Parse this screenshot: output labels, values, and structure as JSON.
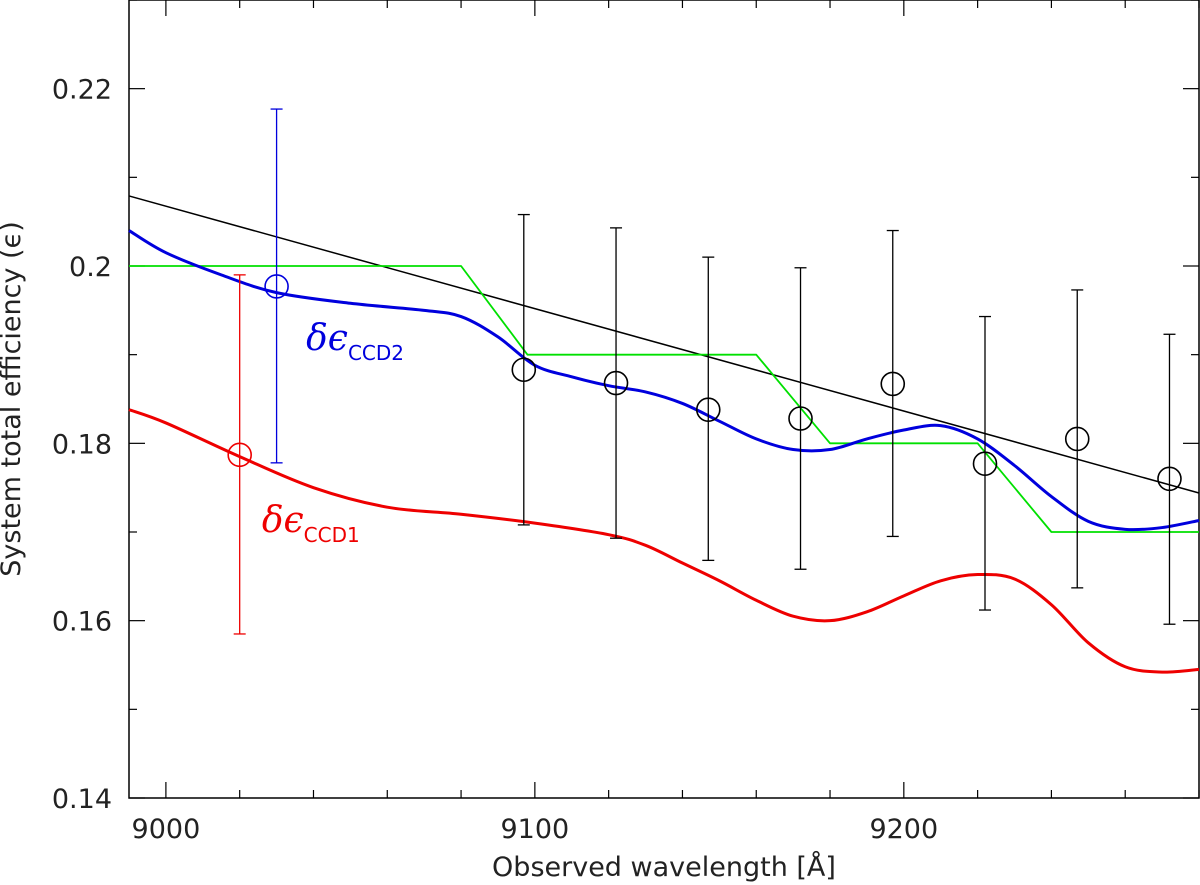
{
  "chart_data": {
    "type": "line",
    "xlabel": "Observed wavelength [Å]",
    "ylabel": "System total efficiency (ϵ)",
    "xlim": [
      8990,
      9280
    ],
    "ylim": [
      0.14,
      0.23
    ],
    "x_ticks": [
      9000,
      9100,
      9200
    ],
    "y_ticks": [
      0.14,
      0.16,
      0.18,
      0.2,
      0.22
    ],
    "x_tick_labels": [
      "9000",
      "9100",
      "9200"
    ],
    "y_tick_labels": [
      "0.14",
      "0.16",
      "0.18",
      "0.2",
      "0.22"
    ],
    "grid": false,
    "series": [
      {
        "color": "#000000",
        "style": "straight-line",
        "x": [
          8990,
          9280
        ],
        "y": [
          0.2079,
          0.1744
        ]
      },
      {
        "color": "#00e000",
        "style": "step-line",
        "x": [
          8990,
          9080,
          9098,
          9160,
          9180,
          9220,
          9240,
          9280
        ],
        "y": [
          0.2,
          0.2,
          0.19,
          0.19,
          0.18,
          0.18,
          0.17,
          0.17
        ]
      },
      {
        "color": "#0000dd",
        "style": "smooth-curve",
        "x": [
          8990,
          9000,
          9015,
          9030,
          9050,
          9070,
          9080,
          9090,
          9100,
          9110,
          9120,
          9130,
          9140,
          9150,
          9160,
          9170,
          9180,
          9190,
          9200,
          9210,
          9220,
          9230,
          9240,
          9250,
          9260,
          9270,
          9280
        ],
        "y": [
          0.204,
          0.2015,
          0.199,
          0.197,
          0.1958,
          0.195,
          0.1943,
          0.192,
          0.1888,
          0.1875,
          0.1865,
          0.1858,
          0.1845,
          0.1825,
          0.1805,
          0.1793,
          0.1793,
          0.1805,
          0.1815,
          0.182,
          0.1805,
          0.1775,
          0.174,
          0.1712,
          0.1703,
          0.1705,
          0.1713
        ]
      },
      {
        "color": "#ee0000",
        "style": "smooth-curve",
        "x": [
          8990,
          9000,
          9020,
          9040,
          9060,
          9080,
          9100,
          9120,
          9130,
          9140,
          9150,
          9160,
          9170,
          9180,
          9190,
          9200,
          9210,
          9220,
          9230,
          9240,
          9250,
          9260,
          9270,
          9280
        ],
        "y": [
          0.1838,
          0.1823,
          0.1785,
          0.175,
          0.1728,
          0.172,
          0.171,
          0.1697,
          0.1685,
          0.1665,
          0.1645,
          0.1623,
          0.1605,
          0.16,
          0.161,
          0.1628,
          0.1645,
          0.1652,
          0.1647,
          0.1618,
          0.1575,
          0.1548,
          0.1542,
          0.1545
        ]
      }
    ],
    "points": [
      {
        "x": 9020,
        "y": 0.1787,
        "yerr_low": 0.1585,
        "yerr_high": 0.199,
        "color": "#ee0000"
      },
      {
        "x": 9030,
        "y": 0.1977,
        "yerr_low": 0.1778,
        "yerr_high": 0.2177,
        "color": "#0000dd"
      },
      {
        "x": 9097,
        "y": 0.1883,
        "yerr_low": 0.1708,
        "yerr_high": 0.2058,
        "color": "#000000"
      },
      {
        "x": 9122,
        "y": 0.1868,
        "yerr_low": 0.1693,
        "yerr_high": 0.2043,
        "color": "#000000"
      },
      {
        "x": 9147,
        "y": 0.1838,
        "yerr_low": 0.1668,
        "yerr_high": 0.201,
        "color": "#000000"
      },
      {
        "x": 9172,
        "y": 0.1828,
        "yerr_low": 0.1658,
        "yerr_high": 0.1998,
        "color": "#000000"
      },
      {
        "x": 9197,
        "y": 0.1867,
        "yerr_low": 0.1695,
        "yerr_high": 0.204,
        "color": "#000000"
      },
      {
        "x": 9222,
        "y": 0.1777,
        "yerr_low": 0.1612,
        "yerr_high": 0.1943,
        "color": "#000000"
      },
      {
        "x": 9247,
        "y": 0.1805,
        "yerr_low": 0.1637,
        "yerr_high": 0.1973,
        "color": "#000000"
      },
      {
        "x": 9272,
        "y": 0.176,
        "yerr_low": 0.1596,
        "yerr_high": 0.1923,
        "color": "#000000"
      }
    ],
    "annotations": [
      {
        "text": "δϵ",
        "sub": "CCD2",
        "x": 9038,
        "y": 0.1905,
        "color": "#0000dd"
      },
      {
        "text": "δϵ",
        "sub": "CCD1",
        "x": 9026,
        "y": 0.17,
        "color": "#ee0000"
      }
    ]
  }
}
